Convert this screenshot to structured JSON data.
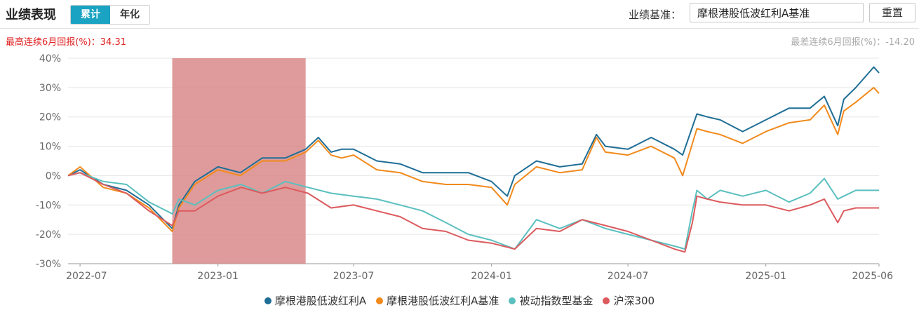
{
  "header": {
    "title": "业绩表现",
    "tabs": [
      {
        "label": "累计",
        "active": true
      },
      {
        "label": "年化",
        "active": false
      }
    ],
    "benchmark_label": "业绩基准：",
    "benchmark_value": "摩根港股低波红利A基准",
    "reset_label": "重置"
  },
  "stats": {
    "best_text": "最高连续6月回报(%)：34.31",
    "worst_text": "最差连续6月回报(%)：-14.20"
  },
  "chart_data": {
    "type": "line",
    "ylim": [
      -30,
      40
    ],
    "yticks": [
      40,
      30,
      20,
      10,
      0,
      -10,
      -20,
      -30
    ],
    "ytick_labels": [
      "40%",
      "30%",
      "20%",
      "10%",
      "0%",
      "-10%",
      "-20%",
      "-30%"
    ],
    "xticks": [
      "2022-07",
      "2023-01",
      "2023-07",
      "2024-01",
      "2024-07",
      "2025-01",
      "2025-06"
    ],
    "x_start": "2022-06-15",
    "x_end": "2025-06-01",
    "highlight_range": [
      "2022-11-01",
      "2023-04-28"
    ],
    "highlight_color": "#d98a8a",
    "grid": true,
    "legend_position": "bottom",
    "series": [
      {
        "name": "摩根港股低波红利A",
        "color": "#1f6e96",
        "x": [
          "2022-06-15",
          "2022-07-01",
          "2022-08-01",
          "2022-09-01",
          "2022-10-01",
          "2022-11-01",
          "2022-11-10",
          "2022-12-01",
          "2023-01-01",
          "2023-01-31",
          "2023-03-01",
          "2023-04-01",
          "2023-04-28",
          "2023-05-15",
          "2023-06-01",
          "2023-06-15",
          "2023-07-01",
          "2023-08-01",
          "2023-09-01",
          "2023-10-01",
          "2023-11-01",
          "2023-12-01",
          "2024-01-01",
          "2024-01-22",
          "2024-02-01",
          "2024-03-01",
          "2024-04-01",
          "2024-05-01",
          "2024-05-20",
          "2024-06-01",
          "2024-07-01",
          "2024-08-01",
          "2024-09-01",
          "2024-09-12",
          "2024-10-01",
          "2024-10-15",
          "2024-11-01",
          "2024-12-01",
          "2025-01-01",
          "2025-02-01",
          "2025-03-01",
          "2025-03-20",
          "2025-04-07",
          "2025-04-15",
          "2025-05-01",
          "2025-05-25",
          "2025-06-01"
        ],
        "values": [
          0,
          2,
          -3,
          -5,
          -10,
          -18,
          -10,
          -2,
          3,
          1,
          6,
          6,
          9,
          13,
          8,
          9,
          9,
          5,
          4,
          1,
          1,
          1,
          -2,
          -7,
          0,
          5,
          3,
          4,
          14,
          10,
          9,
          13,
          9,
          7,
          21,
          20,
          19,
          15,
          19,
          23,
          23,
          27,
          17,
          26,
          30,
          37,
          35
        ]
      },
      {
        "name": "摩根港股低波红利A基准",
        "color": "#f18a1c",
        "x": [
          "2022-06-15",
          "2022-07-01",
          "2022-08-01",
          "2022-09-01",
          "2022-10-01",
          "2022-11-01",
          "2022-11-10",
          "2022-12-01",
          "2023-01-01",
          "2023-01-31",
          "2023-03-01",
          "2023-04-01",
          "2023-04-28",
          "2023-05-15",
          "2023-06-01",
          "2023-06-15",
          "2023-07-01",
          "2023-08-01",
          "2023-09-01",
          "2023-10-01",
          "2023-11-01",
          "2023-12-01",
          "2024-01-01",
          "2024-01-22",
          "2024-02-01",
          "2024-03-01",
          "2024-04-01",
          "2024-05-01",
          "2024-05-20",
          "2024-06-01",
          "2024-07-01",
          "2024-08-01",
          "2024-09-01",
          "2024-09-12",
          "2024-10-01",
          "2024-10-15",
          "2024-11-01",
          "2024-12-01",
          "2025-01-01",
          "2025-02-01",
          "2025-03-01",
          "2025-03-20",
          "2025-04-07",
          "2025-04-15",
          "2025-05-01",
          "2025-05-25",
          "2025-06-01"
        ],
        "values": [
          0,
          3,
          -4,
          -6,
          -11,
          -19,
          -11,
          -3,
          2,
          0,
          5,
          5,
          8,
          12,
          7,
          6,
          7,
          2,
          1,
          -2,
          -3,
          -3,
          -4,
          -10,
          -3,
          3,
          1,
          2,
          13,
          8,
          7,
          10,
          6,
          0,
          16,
          15,
          14,
          11,
          15,
          18,
          19,
          24,
          14,
          22,
          25,
          30,
          28
        ]
      },
      {
        "name": "被动指数型基金",
        "color": "#5bbfbf",
        "x": [
          "2022-06-15",
          "2022-07-01",
          "2022-08-01",
          "2022-09-01",
          "2022-10-01",
          "2022-11-01",
          "2022-11-10",
          "2022-12-01",
          "2023-01-01",
          "2023-02-01",
          "2023-03-01",
          "2023-04-01",
          "2023-05-01",
          "2023-06-01",
          "2023-07-01",
          "2023-08-01",
          "2023-09-01",
          "2023-10-01",
          "2023-11-01",
          "2023-12-01",
          "2024-01-01",
          "2024-02-01",
          "2024-03-01",
          "2024-04-01",
          "2024-05-01",
          "2024-06-01",
          "2024-07-01",
          "2024-08-01",
          "2024-09-01",
          "2024-09-15",
          "2024-09-25",
          "2024-10-01",
          "2024-10-15",
          "2024-11-01",
          "2024-12-01",
          "2025-01-01",
          "2025-02-01",
          "2025-03-01",
          "2025-03-20",
          "2025-04-07",
          "2025-04-15",
          "2025-05-01",
          "2025-06-01"
        ],
        "values": [
          0,
          1,
          -2,
          -3,
          -9,
          -13,
          -8,
          -10,
          -5,
          -3,
          -6,
          -2,
          -4,
          -6,
          -7,
          -8,
          -10,
          -12,
          -16,
          -20,
          -22,
          -25,
          -15,
          -18,
          -15,
          -18,
          -20,
          -22,
          -24,
          -25,
          -12,
          -5,
          -8,
          -5,
          -7,
          -5,
          -9,
          -6,
          -1,
          -8,
          -7,
          -5,
          -5
        ]
      },
      {
        "name": "沪深300",
        "color": "#dc5a5e",
        "x": [
          "2022-06-15",
          "2022-07-01",
          "2022-08-01",
          "2022-09-01",
          "2022-10-01",
          "2022-11-01",
          "2022-11-10",
          "2022-12-01",
          "2023-01-01",
          "2023-02-01",
          "2023-03-01",
          "2023-04-01",
          "2023-05-01",
          "2023-06-01",
          "2023-07-01",
          "2023-08-01",
          "2023-09-01",
          "2023-10-01",
          "2023-11-01",
          "2023-12-01",
          "2024-01-01",
          "2024-02-01",
          "2024-03-01",
          "2024-04-01",
          "2024-05-01",
          "2024-06-01",
          "2024-07-01",
          "2024-08-01",
          "2024-09-01",
          "2024-09-15",
          "2024-09-25",
          "2024-10-01",
          "2024-10-15",
          "2024-11-01",
          "2024-12-01",
          "2025-01-01",
          "2025-02-01",
          "2025-03-01",
          "2025-03-20",
          "2025-04-07",
          "2025-04-15",
          "2025-05-01",
          "2025-06-01"
        ],
        "values": [
          0,
          1,
          -3,
          -6,
          -12,
          -17,
          -12,
          -12,
          -7,
          -4,
          -6,
          -4,
          -6,
          -11,
          -10,
          -12,
          -14,
          -18,
          -19,
          -22,
          -23,
          -25,
          -18,
          -19,
          -15,
          -17,
          -19,
          -22,
          -25,
          -26,
          -16,
          -7,
          -8,
          -9,
          -10,
          -10,
          -12,
          -10,
          -8,
          -16,
          -12,
          -11,
          -11
        ]
      }
    ]
  }
}
